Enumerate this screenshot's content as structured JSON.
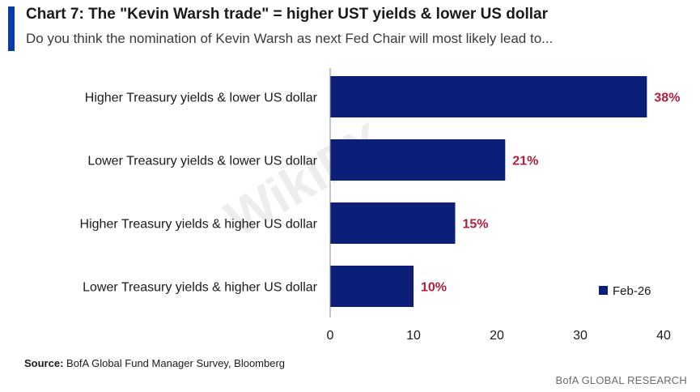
{
  "header": {
    "title": "Chart 7: The \"Kevin Warsh trade\" = higher UST yields & lower US dollar",
    "subtitle": "Do you think the nomination of Kevin Warsh as next Fed Chair will most likely lead to..."
  },
  "footer": {
    "source_label": "Source:",
    "source_text": " BofA Global Fund Manager Survey, Bloomberg",
    "brand": "BofA GLOBAL RESEARCH"
  },
  "watermark": {
    "text": "WikiFX"
  },
  "colors": {
    "bar": "#0c1f78",
    "value_label": "#b01e3c",
    "accent": "#0a3aa8"
  },
  "chart_data": {
    "type": "bar",
    "orientation": "horizontal",
    "categories": [
      "Higher Treasury yields & lower US dollar",
      "Lower Treasury yields & lower US dollar",
      "Higher Treasury yields & higher US dollar",
      "Lower Treasury yields & higher US dollar"
    ],
    "series": [
      {
        "name": "Feb-26",
        "values": [
          38,
          21,
          15,
          10
        ]
      }
    ],
    "data_labels": [
      "38%",
      "21%",
      "15%",
      "10%"
    ],
    "xlim": [
      0,
      40
    ],
    "xticks": [
      0,
      10,
      20,
      30,
      40
    ],
    "grid": false,
    "legend_position": "bottom-right"
  }
}
